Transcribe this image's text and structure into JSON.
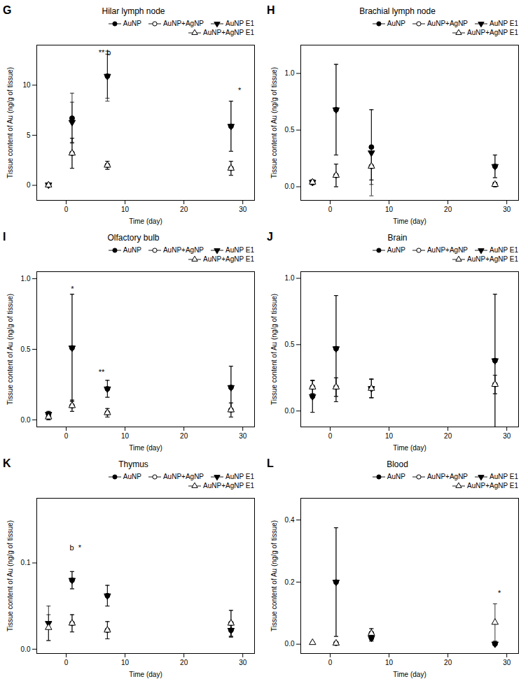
{
  "chart_data": [
    {
      "type": "scatter",
      "panel_label": "G",
      "title": "Hilar lymph node",
      "xlabel": "Time (day)",
      "ylabel": "Tissue content of Au (ng/g of tissue)",
      "xlim": [
        -5,
        32
      ],
      "xticks": [
        0,
        10,
        20,
        30
      ],
      "ylim": [
        -1.5,
        14
      ],
      "yticks": [
        0,
        5,
        10
      ],
      "grid": false,
      "legend": "upper right",
      "annotations": [
        {
          "text": "** b",
          "x": 5.5,
          "y": 13.0
        },
        {
          "text": "*",
          "x": 29.2,
          "y": 9.2
        }
      ],
      "series": [
        {
          "name": "AuNP",
          "color": "black",
          "marker": "circle",
          "x": [
            -3,
            1,
            7,
            28
          ],
          "values": [
            0.05,
            6.7,
            10.9,
            5.9
          ],
          "yerr": [
            0.05,
            2.5,
            2.5,
            2.5
          ]
        },
        {
          "name": "AuNP+AgNP",
          "color": "black",
          "marker": "circle-open",
          "x": [
            -3,
            1,
            7,
            28
          ],
          "values": [
            0.02,
            3.2,
            2.0,
            1.7
          ],
          "yerr": [
            0.02,
            1.5,
            0.4,
            0.7
          ]
        },
        {
          "name": "AuNP E1",
          "color": "black",
          "marker": "triangle-down",
          "x": [
            -3,
            1,
            7,
            28
          ],
          "values": [
            0.05,
            6.3,
            10.9,
            5.9
          ],
          "yerr": [
            0.05,
            2.0,
            2.2,
            2.5
          ]
        },
        {
          "name": "AuNP+AgNP E1",
          "color": "black",
          "marker": "triangle-up-open",
          "x": [
            -3,
            1,
            7,
            28
          ],
          "values": [
            0.02,
            3.2,
            2.0,
            1.7
          ],
          "yerr": [
            0.02,
            1.5,
            0.4,
            0.7
          ]
        }
      ]
    },
    {
      "type": "scatter",
      "panel_label": "H",
      "title": "Brachial lymph node",
      "xlabel": "Time (day)",
      "ylabel": "Tissue content of Au (ng/g of tissue)",
      "xlim": [
        -5,
        32
      ],
      "xticks": [
        0,
        10,
        20,
        30
      ],
      "ylim": [
        -0.12,
        1.25
      ],
      "yticks": [
        {
          "value": 0.0,
          "label": "0.0"
        },
        0.5,
        {
          "value": 1.0,
          "label": "1.0"
        }
      ],
      "grid": false,
      "legend": "upper right",
      "annotations": [],
      "series": [
        {
          "name": "AuNP",
          "color": "black",
          "marker": "circle",
          "x": [
            -3,
            1,
            7,
            28
          ],
          "values": [
            0.04,
            0.68,
            0.35,
            0.18
          ],
          "yerr": [
            0.02,
            0.4,
            0.33,
            0.1
          ]
        },
        {
          "name": "AuNP+AgNP",
          "color": "black",
          "marker": "circle-open",
          "x": [
            -3,
            1,
            7,
            28
          ],
          "values": [
            0.04,
            0.1,
            0.18,
            0.02
          ],
          "yerr": [
            0.02,
            0.1,
            0.12,
            0.02
          ]
        },
        {
          "name": "AuNP E1",
          "color": "black",
          "marker": "triangle-down",
          "x": [
            -3,
            1,
            7,
            28
          ],
          "values": [
            0.04,
            0.68,
            0.3,
            0.18
          ],
          "yerr": [
            0.02,
            0.4,
            0.38,
            0.1
          ]
        },
        {
          "name": "AuNP+AgNP E1",
          "color": "black",
          "marker": "triangle-up-open",
          "x": [
            -3,
            1,
            7,
            28
          ],
          "values": [
            0.04,
            0.1,
            0.18,
            0.02
          ],
          "yerr": [
            0.02,
            0.1,
            0.12,
            0.02
          ]
        }
      ]
    },
    {
      "type": "scatter",
      "panel_label": "I",
      "title": "Olfactory bulb",
      "xlabel": "Time (day)",
      "ylabel": "Tissue content of Au (ng/g of tissue)",
      "xlim": [
        -5,
        32
      ],
      "xticks": [
        0,
        10,
        20,
        30
      ],
      "ylim": [
        -0.05,
        1.05
      ],
      "yticks": [
        {
          "value": 0.0,
          "label": "0.0"
        },
        0.5,
        {
          "value": 1.0,
          "label": "1.0"
        }
      ],
      "grid": false,
      "legend": "upper right",
      "annotations": [
        {
          "text": "*",
          "x": 0.8,
          "y": 0.91
        },
        {
          "text": "**",
          "x": 5.5,
          "y": 0.32
        }
      ],
      "series": [
        {
          "name": "AuNP",
          "color": "black",
          "marker": "circle",
          "x": [
            -3,
            1,
            7,
            28
          ],
          "values": [
            0.04,
            0.51,
            0.22,
            0.23
          ],
          "yerr": [
            0.02,
            0.38,
            0.06,
            0.15
          ]
        },
        {
          "name": "AuNP+AgNP",
          "color": "black",
          "marker": "circle-open",
          "x": [
            -3,
            1,
            7,
            28
          ],
          "values": [
            0.02,
            0.1,
            0.05,
            0.07
          ],
          "yerr": [
            0.02,
            0.04,
            0.03,
            0.05
          ]
        },
        {
          "name": "AuNP E1",
          "color": "black",
          "marker": "triangle-down",
          "x": [
            -3,
            1,
            7,
            28
          ],
          "values": [
            0.04,
            0.51,
            0.22,
            0.23
          ],
          "yerr": [
            0.02,
            0.38,
            0.06,
            0.15
          ]
        },
        {
          "name": "AuNP+AgNP E1",
          "color": "black",
          "marker": "triangle-up-open",
          "x": [
            -3,
            1,
            7,
            28
          ],
          "values": [
            0.02,
            0.1,
            0.05,
            0.07
          ],
          "yerr": [
            0.02,
            0.04,
            0.03,
            0.05
          ]
        }
      ]
    },
    {
      "type": "scatter",
      "panel_label": "J",
      "title": "Brain",
      "xlabel": "Time (day)",
      "ylabel": "Tissue content of Au (ng/g of tissue)",
      "xlim": [
        -5,
        32
      ],
      "xticks": [
        0,
        10,
        20,
        30
      ],
      "ylim": [
        -0.12,
        1.05
      ],
      "yticks": [
        {
          "value": 0.0,
          "label": "0.0"
        },
        0.5,
        {
          "value": 1.0,
          "label": "1.0"
        }
      ],
      "grid": false,
      "legend": "upper right",
      "annotations": [],
      "series": [
        {
          "name": "AuNP",
          "color": "black",
          "marker": "circle",
          "x": [
            -3,
            1,
            7,
            28
          ],
          "values": [
            0.11,
            0.47,
            0.17,
            0.38
          ],
          "yerr": [
            0.12,
            0.4,
            0.07,
            0.5
          ]
        },
        {
          "name": "AuNP+AgNP",
          "color": "black",
          "marker": "circle-open",
          "x": [
            -3,
            1,
            7,
            28
          ],
          "values": [
            0.18,
            0.18,
            0.17,
            0.2
          ],
          "yerr": [
            0.05,
            0.07,
            0.07,
            0.07
          ]
        },
        {
          "name": "AuNP E1",
          "color": "black",
          "marker": "triangle-down",
          "x": [
            -3,
            1,
            7,
            28
          ],
          "values": [
            0.11,
            0.47,
            0.17,
            0.38
          ],
          "yerr": [
            0.12,
            0.4,
            0.07,
            0.5
          ]
        },
        {
          "name": "AuNP+AgNP E1",
          "color": "black",
          "marker": "triangle-up-open",
          "x": [
            -3,
            1,
            7,
            28
          ],
          "values": [
            0.18,
            0.18,
            0.17,
            0.2
          ],
          "yerr": [
            0.05,
            0.07,
            0.07,
            0.07
          ]
        }
      ]
    },
    {
      "type": "scatter",
      "panel_label": "K",
      "title": "Thymus",
      "xlabel": "Time (day)",
      "ylabel": "Tissue content of Au (ng/g of tissue)",
      "xlim": [
        -5,
        32
      ],
      "xticks": [
        0,
        10,
        20,
        30
      ],
      "ylim": [
        -0.005,
        0.175
      ],
      "yticks": [
        {
          "value": 0.0,
          "label": "0.0"
        },
        0.1
      ],
      "grid": false,
      "legend": "upper right",
      "annotations": [
        {
          "text": "b  *",
          "x": 0.6,
          "y": 0.115
        }
      ],
      "series": [
        {
          "name": "AuNP",
          "color": "black",
          "marker": "circle",
          "x": [
            1,
            7,
            28
          ],
          "values": [
            0.08,
            0.062,
            0.022
          ],
          "yerr": [
            0.01,
            0.012,
            0.008
          ]
        },
        {
          "name": "AuNP+AgNP",
          "color": "black",
          "marker": "circle-open",
          "x": [
            1,
            7,
            28
          ],
          "values": [
            0.03,
            0.022,
            0.03
          ],
          "yerr": [
            0.01,
            0.01,
            0.015
          ]
        },
        {
          "name": "AuNP E1",
          "color": "black",
          "marker": "triangle-down",
          "x": [
            -3,
            1,
            7,
            28
          ],
          "values": [
            0.03,
            0.08,
            0.062,
            0.022
          ],
          "yerr": [
            0.02,
            0.01,
            0.012,
            0.008
          ]
        },
        {
          "name": "AuNP+AgNP E1",
          "color": "black",
          "marker": "triangle-up-open",
          "x": [
            -3,
            1,
            7,
            28
          ],
          "values": [
            0.025,
            0.03,
            0.022,
            0.03
          ],
          "yerr": [
            0.015,
            0.01,
            0.01,
            0.015
          ]
        }
      ]
    },
    {
      "type": "scatter",
      "panel_label": "L",
      "title": "Blood",
      "xlabel": "Time (day)",
      "ylabel": "Tissue content of Au (ng/g of tissue)",
      "xlim": [
        -5,
        32
      ],
      "xticks": [
        0,
        10,
        20,
        30
      ],
      "ylim": [
        -0.03,
        0.47
      ],
      "yticks": [
        {
          "value": 0.0,
          "label": "0.0"
        },
        0.2,
        0.4
      ],
      "grid": false,
      "legend": "upper right",
      "annotations": [
        {
          "text": "*",
          "x": 28.5,
          "y": 0.155
        }
      ],
      "series": [
        {
          "name": "AuNP",
          "color": "black",
          "marker": "circle",
          "x": [
            1,
            7,
            28
          ],
          "values": [
            0.2,
            0.02,
            0.001
          ],
          "yerr": [
            0.175,
            0.01,
            0.001
          ]
        },
        {
          "name": "AuNP+AgNP",
          "color": "black",
          "marker": "circle-open",
          "x": [
            1,
            7,
            28
          ],
          "values": [
            0.003,
            0.035,
            0.001
          ],
          "yerr": [
            0.002,
            0.015,
            0.001
          ]
        },
        {
          "name": "AuNP E1",
          "color": "black",
          "marker": "triangle-down",
          "x": [
            1,
            7,
            28
          ],
          "values": [
            0.2,
            0.02,
            0.001
          ],
          "yerr": [
            0.175,
            0.01,
            0.001
          ]
        },
        {
          "name": "AuNP+AgNP E1",
          "color": "black",
          "marker": "triangle-up-open",
          "x": [
            -3,
            1,
            7,
            28
          ],
          "values": [
            0.005,
            0.003,
            0.035,
            0.07
          ],
          "yerr": [
            0.003,
            0.002,
            0.015,
            0.06
          ]
        }
      ]
    }
  ]
}
